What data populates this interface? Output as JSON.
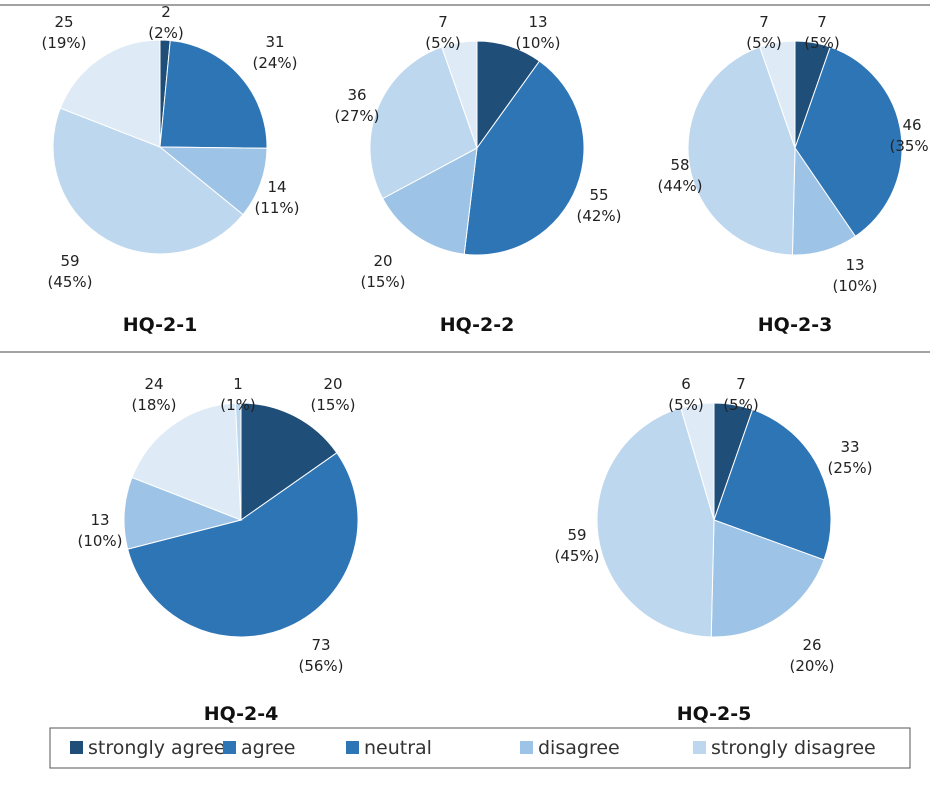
{
  "legend": [
    {
      "label": "strongly agree",
      "color": "#1f4e79"
    },
    {
      "label": "agree",
      "color": "#2e75b6"
    },
    {
      "label": "neutral",
      "color": "#2e75b6"
    },
    {
      "label": "disagree",
      "color": "#9dc3e6"
    },
    {
      "label": "strongly disagree",
      "color": "#bdd7ee"
    }
  ],
  "chart_data": [
    {
      "type": "pie",
      "title": "HQ-2-1",
      "categories": [
        "strongly agree",
        "agree",
        "disagree",
        "neutral",
        "strongly disagree"
      ],
      "values": [
        2,
        31,
        14,
        59,
        25
      ],
      "percent_labels": [
        "(2%)",
        "(24%)",
        "(11%)",
        "(45%)",
        "(19%)"
      ],
      "colors": [
        "#1f4e79",
        "#2e75b6",
        "#9dc3e6",
        "#bdd7ee",
        "#deebf7"
      ]
    },
    {
      "type": "pie",
      "title": "HQ-2-2",
      "categories": [
        "strongly agree",
        "agree",
        "disagree",
        "neutral",
        "strongly disagree"
      ],
      "values": [
        13,
        55,
        20,
        36,
        7
      ],
      "percent_labels": [
        "(10%)",
        "(42%)",
        "(15%)",
        "(27%)",
        "(5%)"
      ],
      "colors": [
        "#1f4e79",
        "#2e75b6",
        "#9dc3e6",
        "#bdd7ee",
        "#deebf7"
      ]
    },
    {
      "type": "pie",
      "title": "HQ-2-3",
      "categories": [
        "strongly agree",
        "agree",
        "disagree",
        "neutral",
        "strongly disagree"
      ],
      "values": [
        7,
        46,
        13,
        58,
        7
      ],
      "percent_labels": [
        "(5%)",
        "(35%)",
        "(10%)",
        "(44%)",
        "(5%)"
      ],
      "colors": [
        "#1f4e79",
        "#2e75b6",
        "#9dc3e6",
        "#bdd7ee",
        "#deebf7"
      ]
    },
    {
      "type": "pie",
      "title": "HQ-2-4",
      "categories": [
        "strongly agree",
        "agree",
        "disagree",
        "neutral",
        "strongly disagree"
      ],
      "values": [
        20,
        73,
        13,
        24,
        1
      ],
      "percent_labels": [
        "(15%)",
        "(56%)",
        "(10%)",
        "(18%)",
        "(1%)"
      ],
      "colors": [
        "#1f4e79",
        "#2e75b6",
        "#9dc3e6",
        "#deebf7",
        "#bdd7ee"
      ]
    },
    {
      "type": "pie",
      "title": "HQ-2-5",
      "categories": [
        "strongly agree",
        "agree",
        "disagree",
        "neutral",
        "strongly disagree"
      ],
      "values": [
        7,
        33,
        26,
        59,
        6
      ],
      "percent_labels": [
        "(5%)",
        "(25%)",
        "(20%)",
        "(45%)",
        "(5%)"
      ],
      "colors": [
        "#1f4e79",
        "#2e75b6",
        "#9dc3e6",
        "#bdd7ee",
        "#deebf7"
      ]
    }
  ]
}
